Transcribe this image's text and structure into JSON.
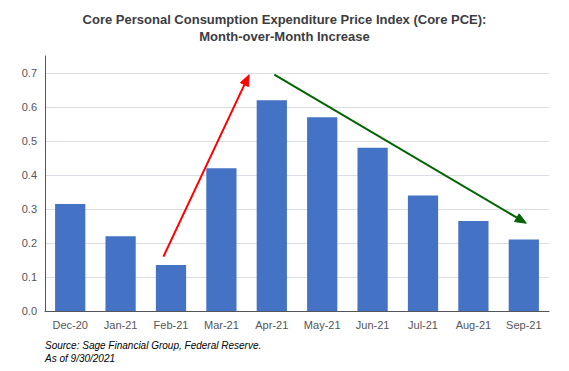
{
  "chart_data": {
    "type": "bar",
    "title": "Core Personal Consumption Expenditure Price Index (Core PCE):\nMonth-over-Month Increase",
    "categories": [
      "Dec-20",
      "Jan-21",
      "Feb-21",
      "Mar-21",
      "Apr-21",
      "May-21",
      "Jun-21",
      "Jul-21",
      "Aug-21",
      "Sep-21"
    ],
    "values": [
      0.315,
      0.22,
      0.135,
      0.42,
      0.62,
      0.57,
      0.48,
      0.34,
      0.265,
      0.21
    ],
    "color": "#4472C4",
    "ylim": [
      0,
      0.75
    ],
    "yticks": [
      {
        "value": 0,
        "label": "0.0"
      },
      0.1,
      0.2,
      0.3,
      0.4,
      0.5,
      0.6,
      0.7
    ],
    "grid": true,
    "source": "Source: Sage Financial Group, Federal Reserve.\nAs of 9/30/2021",
    "arrows": [
      {
        "from": [
          1.85,
          0.16
        ],
        "to": [
          3.55,
          0.695
        ],
        "color": "red"
      },
      {
        "from": [
          4.05,
          0.695
        ],
        "to": [
          9.05,
          0.258
        ],
        "color": "darkgreen"
      }
    ]
  }
}
